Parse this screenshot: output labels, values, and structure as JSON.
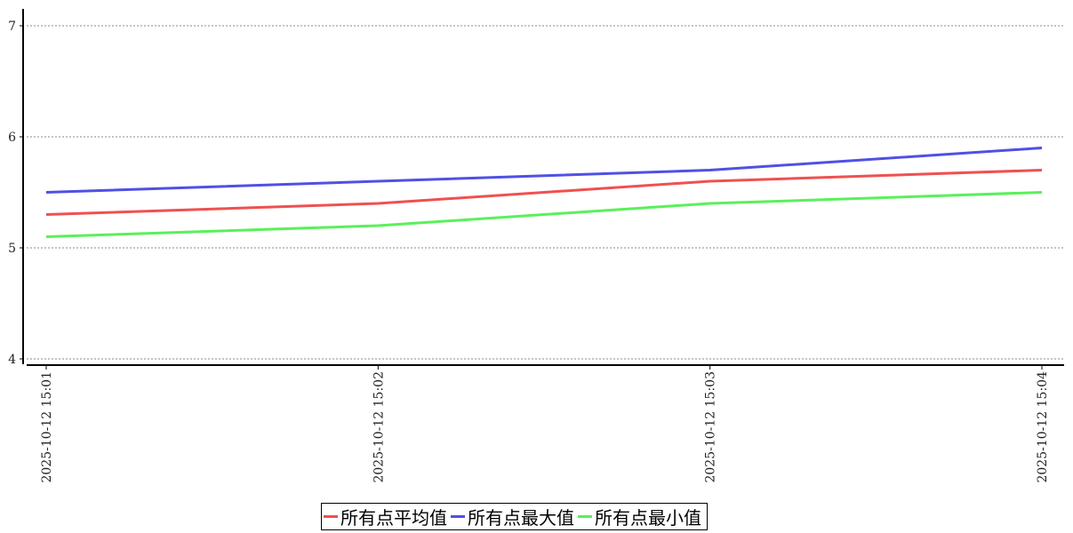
{
  "chart_data": {
    "type": "line",
    "title": "",
    "xlabel": "",
    "ylabel": "",
    "categories": [
      "2025-10-12 15:01",
      "2025-10-12 15:02",
      "2025-10-12 15:03",
      "2025-10-12 15:04"
    ],
    "ylim": [
      4,
      7
    ],
    "yticks": [
      4,
      5,
      6,
      7
    ],
    "grid": "horizontal dashed",
    "legend_position": "bottom-center",
    "series": [
      {
        "name": "所有点平均值",
        "color": "#f05050",
        "values": [
          5.3,
          5.4,
          5.6,
          5.7
        ]
      },
      {
        "name": "所有点最大值",
        "color": "#5050e6",
        "values": [
          5.5,
          5.6,
          5.7,
          5.9
        ]
      },
      {
        "name": "所有点最小值",
        "color": "#5af05a",
        "values": [
          5.1,
          5.2,
          5.4,
          5.5
        ]
      }
    ]
  }
}
